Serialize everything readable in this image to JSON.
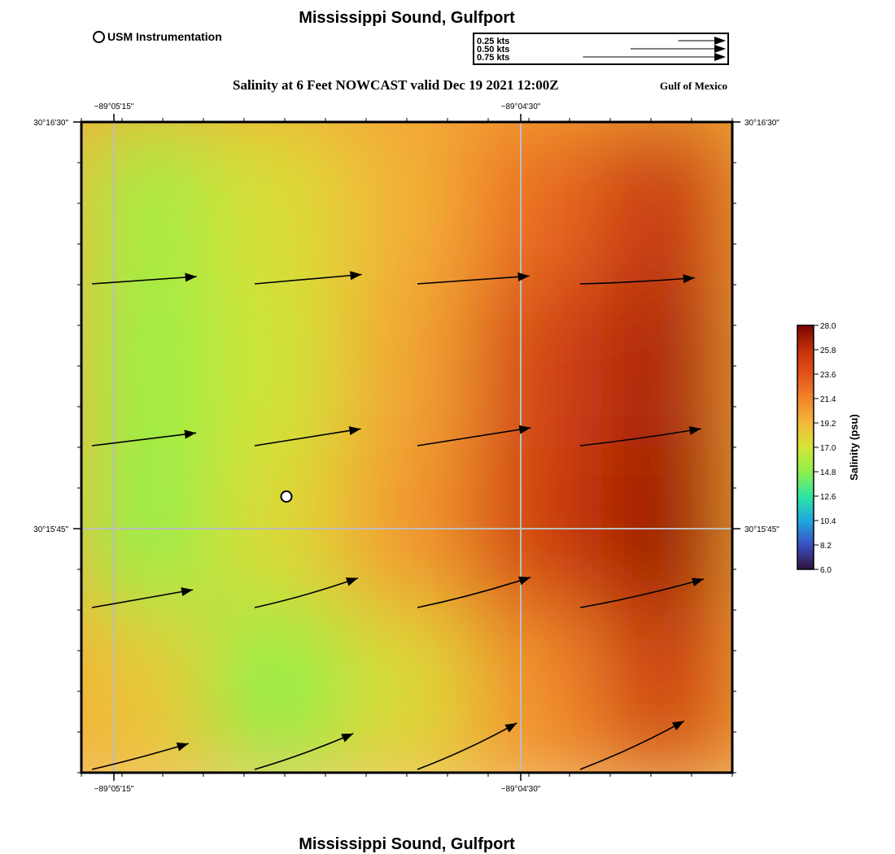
{
  "header": {
    "title_top": "Mississippi Sound, Gulfport",
    "title_bottom": "Mississippi Sound, Gulfport",
    "subtitle": "Salinity at 6 Feet NOWCAST valid Dec 19 2021 12:00Z",
    "region": "Gulf of Mexico"
  },
  "legend": {
    "station_label": "USM Instrumentation",
    "scale_labels": [
      "0.25 kts",
      "0.50 kts",
      "0.75 kts"
    ],
    "scale_values": [
      0.25,
      0.5,
      0.75
    ]
  },
  "axes": {
    "lon_ticks": [
      "−89°05'15\"",
      "−89°04'30\""
    ],
    "lat_ticks": [
      "30°16'30\"",
      "30°15'45\""
    ]
  },
  "colorbar": {
    "label": "Salinity (psu)",
    "ticks": [
      "28.0",
      "25.8",
      "23.6",
      "21.4",
      "19.2",
      "17.0",
      "14.8",
      "12.6",
      "10.4",
      "8.2",
      "6.0"
    ],
    "min": 6.0,
    "max": 28.0,
    "colors": [
      "#30123b",
      "#3b4fc4",
      "#1fa8e0",
      "#2ee5a4",
      "#8ff04a",
      "#d5e436",
      "#f4b83a",
      "#f2842a",
      "#e2531a",
      "#c13009",
      "#7a0403"
    ]
  },
  "station": {
    "name": "USM Instrumentation",
    "col": 1.6,
    "row": 2.3
  },
  "field": {
    "rows": 4,
    "cols": 5,
    "salinity": [
      [
        15.5,
        17.3,
        19.5,
        22.5,
        25.5
      ],
      [
        15.2,
        16.8,
        20.0,
        24.5,
        26.5
      ],
      [
        15.0,
        17.5,
        20.5,
        24.8,
        27.0
      ],
      [
        18.5,
        14.8,
        17.5,
        21.0,
        25.0
      ]
    ]
  },
  "currents": [
    {
      "row": 0,
      "col": 0,
      "speed": 0.43,
      "dir": -4,
      "curve": 0
    },
    {
      "row": 0,
      "col": 1,
      "speed": 0.44,
      "dir": -5,
      "curve": 0
    },
    {
      "row": 0,
      "col": 2,
      "speed": 0.46,
      "dir": -4,
      "curve": 0
    },
    {
      "row": 0,
      "col": 3,
      "speed": 0.47,
      "dir": -3,
      "curve": 2
    },
    {
      "row": 1,
      "col": 0,
      "speed": 0.43,
      "dir": -7,
      "curve": 0
    },
    {
      "row": 1,
      "col": 1,
      "speed": 0.44,
      "dir": -9,
      "curve": 0
    },
    {
      "row": 1,
      "col": 2,
      "speed": 0.47,
      "dir": -9,
      "curve": 0
    },
    {
      "row": 1,
      "col": 3,
      "speed": 0.5,
      "dir": -8,
      "curve": 2
    },
    {
      "row": 2,
      "col": 0,
      "speed": 0.42,
      "dir": -10,
      "curve": 0
    },
    {
      "row": 2,
      "col": 1,
      "speed": 0.44,
      "dir": -16,
      "curve": 4
    },
    {
      "row": 2,
      "col": 2,
      "speed": 0.48,
      "dir": -15,
      "curve": 4
    },
    {
      "row": 2,
      "col": 3,
      "speed": 0.52,
      "dir": -13,
      "curve": 4
    },
    {
      "row": 3,
      "col": 0,
      "speed": 0.41,
      "dir": -15,
      "curve": 2
    },
    {
      "row": 3,
      "col": 1,
      "speed": 0.43,
      "dir": -20,
      "curve": 4
    },
    {
      "row": 3,
      "col": 2,
      "speed": 0.45,
      "dir": -25,
      "curve": 5
    },
    {
      "row": 3,
      "col": 3,
      "speed": 0.47,
      "dir": -25,
      "curve": 5
    }
  ]
}
